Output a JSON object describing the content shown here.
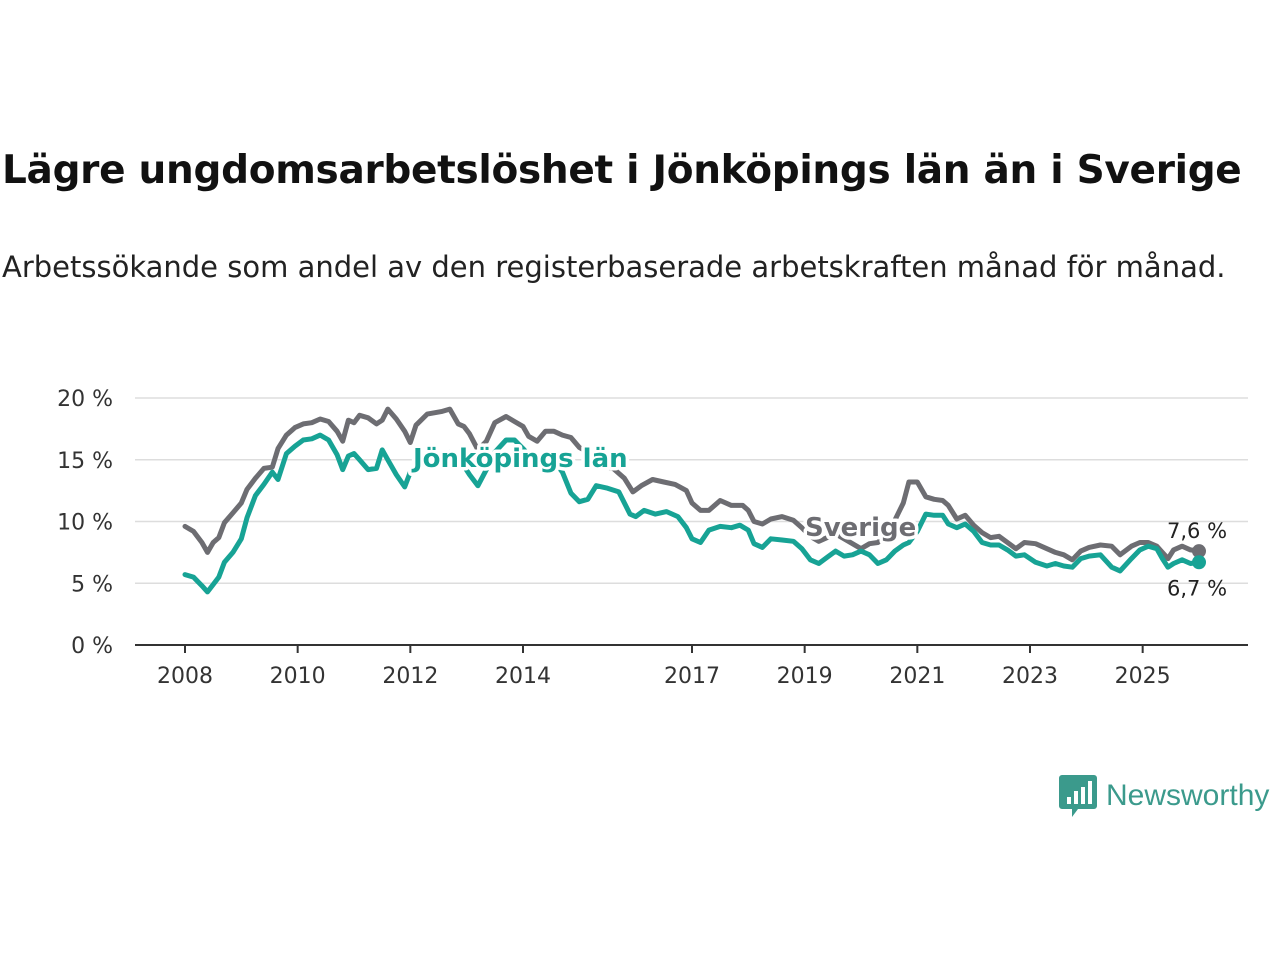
{
  "title": "Lägre ungdomsarbetslöshet i Jönköpings län än i Sverige",
  "subtitle": "Arbetssökande som andel av den registerbaserade arbetskraften månad för månad.",
  "logo": {
    "text": "Newsworthy",
    "icon": "newsworthy-chart-icon"
  },
  "colors": {
    "sverige": "#6d6d72",
    "jonkoping": "#17a395",
    "grid": "#dddddd",
    "axis": "#333333"
  },
  "chart_data": {
    "type": "line",
    "title": "Lägre ungdomsarbetslöshet i Jönköpings län än i Sverige",
    "xlabel": "",
    "ylabel": "",
    "ylim": [
      0,
      20
    ],
    "xlim": [
      2008,
      2026.5
    ],
    "yticks": [
      0,
      5,
      10,
      15,
      20
    ],
    "ytick_labels": [
      "0 %",
      "5 %",
      "10 %",
      "15 %",
      "20 %"
    ],
    "xticks": [
      2008,
      2010,
      2012,
      2014,
      2017,
      2019,
      2021,
      2023,
      2025
    ],
    "xtick_labels": [
      "2008",
      "2010",
      "2012",
      "2014",
      "2017",
      "2019",
      "2021",
      "2023",
      "2025"
    ],
    "grid": true,
    "series": [
      {
        "name": "Sverige",
        "label": "Sverige",
        "end_label": "7,6 %",
        "points": [
          [
            2008.0,
            9.6
          ],
          [
            2008.15,
            9.2
          ],
          [
            2008.3,
            8.3
          ],
          [
            2008.4,
            7.5
          ],
          [
            2008.5,
            8.3
          ],
          [
            2008.6,
            8.7
          ],
          [
            2008.7,
            9.9
          ],
          [
            2008.85,
            10.7
          ],
          [
            2009.0,
            11.5
          ],
          [
            2009.1,
            12.6
          ],
          [
            2009.25,
            13.5
          ],
          [
            2009.4,
            14.3
          ],
          [
            2009.55,
            14.4
          ],
          [
            2009.65,
            15.9
          ],
          [
            2009.8,
            17.0
          ],
          [
            2009.95,
            17.6
          ],
          [
            2010.1,
            17.9
          ],
          [
            2010.25,
            18.0
          ],
          [
            2010.4,
            18.3
          ],
          [
            2010.55,
            18.1
          ],
          [
            2010.7,
            17.3
          ],
          [
            2010.8,
            16.5
          ],
          [
            2010.9,
            18.2
          ],
          [
            2011.0,
            18.0
          ],
          [
            2011.1,
            18.6
          ],
          [
            2011.25,
            18.4
          ],
          [
            2011.4,
            17.9
          ],
          [
            2011.5,
            18.2
          ],
          [
            2011.6,
            19.1
          ],
          [
            2011.75,
            18.3
          ],
          [
            2011.9,
            17.3
          ],
          [
            2012.0,
            16.4
          ],
          [
            2012.1,
            17.8
          ],
          [
            2012.3,
            18.7
          ],
          [
            2012.55,
            18.9
          ],
          [
            2012.7,
            19.1
          ],
          [
            2012.85,
            17.9
          ],
          [
            2012.95,
            17.7
          ],
          [
            2013.05,
            17.1
          ],
          [
            2013.2,
            15.8
          ],
          [
            2013.35,
            16.5
          ],
          [
            2013.5,
            18.0
          ],
          [
            2013.7,
            18.5
          ],
          [
            2013.85,
            18.1
          ],
          [
            2014.0,
            17.7
          ],
          [
            2014.1,
            16.9
          ],
          [
            2014.25,
            16.5
          ],
          [
            2014.4,
            17.3
          ],
          [
            2014.55,
            17.3
          ],
          [
            2014.7,
            17.0
          ],
          [
            2014.85,
            16.8
          ],
          [
            2015.0,
            16.0
          ],
          [
            2015.2,
            15.5
          ],
          [
            2015.4,
            14.5
          ],
          [
            2015.6,
            14.3
          ],
          [
            2015.8,
            13.5
          ],
          [
            2015.95,
            12.4
          ],
          [
            2016.1,
            12.9
          ],
          [
            2016.3,
            13.4
          ],
          [
            2016.5,
            13.2
          ],
          [
            2016.7,
            13.0
          ],
          [
            2016.9,
            12.5
          ],
          [
            2017.0,
            11.5
          ],
          [
            2017.15,
            10.9
          ],
          [
            2017.3,
            10.9
          ],
          [
            2017.5,
            11.7
          ],
          [
            2017.7,
            11.3
          ],
          [
            2017.9,
            11.3
          ],
          [
            2018.0,
            10.9
          ],
          [
            2018.1,
            10.0
          ],
          [
            2018.25,
            9.8
          ],
          [
            2018.4,
            10.2
          ],
          [
            2018.6,
            10.4
          ],
          [
            2018.8,
            10.1
          ],
          [
            2018.95,
            9.5
          ],
          [
            2019.1,
            8.8
          ],
          [
            2019.25,
            8.4
          ],
          [
            2019.4,
            8.7
          ],
          [
            2019.55,
            9.0
          ],
          [
            2019.7,
            8.6
          ],
          [
            2019.85,
            8.2
          ],
          [
            2020.0,
            7.8
          ],
          [
            2020.15,
            8.2
          ],
          [
            2020.3,
            8.3
          ],
          [
            2020.45,
            9.1
          ],
          [
            2020.6,
            10.1
          ],
          [
            2020.75,
            11.5
          ],
          [
            2020.85,
            13.2
          ],
          [
            2021.0,
            13.2
          ],
          [
            2021.15,
            12.0
          ],
          [
            2021.3,
            11.8
          ],
          [
            2021.45,
            11.7
          ],
          [
            2021.55,
            11.3
          ],
          [
            2021.7,
            10.2
          ],
          [
            2021.85,
            10.5
          ],
          [
            2022.0,
            9.7
          ],
          [
            2022.15,
            9.1
          ],
          [
            2022.3,
            8.7
          ],
          [
            2022.45,
            8.8
          ],
          [
            2022.6,
            8.3
          ],
          [
            2022.75,
            7.8
          ],
          [
            2022.9,
            8.3
          ],
          [
            2023.1,
            8.2
          ],
          [
            2023.3,
            7.8
          ],
          [
            2023.45,
            7.5
          ],
          [
            2023.6,
            7.3
          ],
          [
            2023.75,
            6.9
          ],
          [
            2023.9,
            7.6
          ],
          [
            2024.05,
            7.9
          ],
          [
            2024.25,
            8.1
          ],
          [
            2024.45,
            8.0
          ],
          [
            2024.6,
            7.3
          ],
          [
            2024.8,
            8.0
          ],
          [
            2024.95,
            8.3
          ],
          [
            2025.1,
            8.3
          ],
          [
            2025.25,
            8.0
          ],
          [
            2025.35,
            7.5
          ],
          [
            2025.45,
            7.0
          ],
          [
            2025.55,
            7.7
          ],
          [
            2025.7,
            8.0
          ],
          [
            2025.85,
            7.7
          ],
          [
            2026.0,
            7.6
          ]
        ]
      },
      {
        "name": "Jönköpings län",
        "label": "Jönköpings län",
        "end_label": "6,7 %",
        "points": [
          [
            2008.0,
            5.7
          ],
          [
            2008.15,
            5.5
          ],
          [
            2008.3,
            4.8
          ],
          [
            2008.4,
            4.3
          ],
          [
            2008.5,
            4.9
          ],
          [
            2008.6,
            5.5
          ],
          [
            2008.7,
            6.7
          ],
          [
            2008.85,
            7.5
          ],
          [
            2009.0,
            8.6
          ],
          [
            2009.1,
            10.3
          ],
          [
            2009.25,
            12.1
          ],
          [
            2009.4,
            13.0
          ],
          [
            2009.55,
            14.0
          ],
          [
            2009.65,
            13.4
          ],
          [
            2009.8,
            15.5
          ],
          [
            2009.95,
            16.1
          ],
          [
            2010.1,
            16.6
          ],
          [
            2010.25,
            16.7
          ],
          [
            2010.4,
            17.0
          ],
          [
            2010.55,
            16.6
          ],
          [
            2010.7,
            15.4
          ],
          [
            2010.8,
            14.2
          ],
          [
            2010.9,
            15.3
          ],
          [
            2011.0,
            15.5
          ],
          [
            2011.1,
            15.0
          ],
          [
            2011.25,
            14.2
          ],
          [
            2011.4,
            14.3
          ],
          [
            2011.5,
            15.8
          ],
          [
            2011.6,
            15.0
          ],
          [
            2011.75,
            13.8
          ],
          [
            2011.9,
            12.8
          ],
          [
            2012.0,
            14.0
          ],
          [
            2012.1,
            14.6
          ],
          [
            2012.3,
            15.6
          ],
          [
            2012.55,
            15.2
          ],
          [
            2012.7,
            15.6
          ],
          [
            2012.85,
            15.4
          ],
          [
            2012.95,
            14.5
          ],
          [
            2013.05,
            13.8
          ],
          [
            2013.2,
            12.9
          ],
          [
            2013.35,
            14.2
          ],
          [
            2013.5,
            15.6
          ],
          [
            2013.7,
            16.6
          ],
          [
            2013.85,
            16.6
          ],
          [
            2014.0,
            15.9
          ],
          [
            2014.1,
            15.4
          ],
          [
            2014.25,
            14.8
          ],
          [
            2014.4,
            15.4
          ],
          [
            2014.55,
            14.9
          ],
          [
            2014.7,
            14.0
          ],
          [
            2014.85,
            12.3
          ],
          [
            2015.0,
            11.6
          ],
          [
            2015.15,
            11.8
          ],
          [
            2015.3,
            12.9
          ],
          [
            2015.5,
            12.7
          ],
          [
            2015.7,
            12.4
          ],
          [
            2015.9,
            10.6
          ],
          [
            2016.0,
            10.4
          ],
          [
            2016.15,
            10.9
          ],
          [
            2016.35,
            10.6
          ],
          [
            2016.55,
            10.8
          ],
          [
            2016.75,
            10.4
          ],
          [
            2016.9,
            9.5
          ],
          [
            2017.0,
            8.6
          ],
          [
            2017.15,
            8.3
          ],
          [
            2017.3,
            9.3
          ],
          [
            2017.5,
            9.6
          ],
          [
            2017.7,
            9.5
          ],
          [
            2017.85,
            9.7
          ],
          [
            2018.0,
            9.3
          ],
          [
            2018.1,
            8.2
          ],
          [
            2018.25,
            7.9
          ],
          [
            2018.4,
            8.6
          ],
          [
            2018.6,
            8.5
          ],
          [
            2018.8,
            8.4
          ],
          [
            2018.95,
            7.8
          ],
          [
            2019.1,
            6.9
          ],
          [
            2019.25,
            6.6
          ],
          [
            2019.4,
            7.1
          ],
          [
            2019.55,
            7.6
          ],
          [
            2019.7,
            7.2
          ],
          [
            2019.85,
            7.3
          ],
          [
            2020.0,
            7.6
          ],
          [
            2020.15,
            7.3
          ],
          [
            2020.3,
            6.6
          ],
          [
            2020.45,
            6.9
          ],
          [
            2020.6,
            7.6
          ],
          [
            2020.75,
            8.1
          ],
          [
            2020.85,
            8.3
          ],
          [
            2021.0,
            9.2
          ],
          [
            2021.15,
            10.6
          ],
          [
            2021.3,
            10.5
          ],
          [
            2021.45,
            10.5
          ],
          [
            2021.55,
            9.8
          ],
          [
            2021.7,
            9.5
          ],
          [
            2021.85,
            9.8
          ],
          [
            2022.0,
            9.2
          ],
          [
            2022.15,
            8.3
          ],
          [
            2022.3,
            8.1
          ],
          [
            2022.45,
            8.1
          ],
          [
            2022.6,
            7.7
          ],
          [
            2022.75,
            7.2
          ],
          [
            2022.9,
            7.3
          ],
          [
            2023.1,
            6.7
          ],
          [
            2023.3,
            6.4
          ],
          [
            2023.45,
            6.6
          ],
          [
            2023.6,
            6.4
          ],
          [
            2023.75,
            6.3
          ],
          [
            2023.9,
            7.0
          ],
          [
            2024.05,
            7.2
          ],
          [
            2024.25,
            7.3
          ],
          [
            2024.45,
            6.3
          ],
          [
            2024.6,
            6.0
          ],
          [
            2024.8,
            7.0
          ],
          [
            2024.95,
            7.7
          ],
          [
            2025.1,
            8.0
          ],
          [
            2025.25,
            7.8
          ],
          [
            2025.35,
            7.0
          ],
          [
            2025.45,
            6.3
          ],
          [
            2025.55,
            6.6
          ],
          [
            2025.7,
            6.9
          ],
          [
            2025.85,
            6.6
          ],
          [
            2026.0,
            6.7
          ]
        ]
      }
    ]
  }
}
